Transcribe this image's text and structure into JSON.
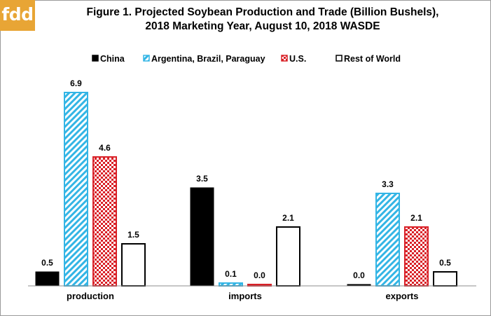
{
  "branding": {
    "logo_text": "fdd",
    "logo_color": "#e8a535"
  },
  "chart_data": {
    "type": "bar",
    "title": "Figure 1. Projected Soybean Production and Trade (Billion Bushels),",
    "subtitle": "2018 Marketing Year, August 10, 2018 WASDE",
    "xlabel": "",
    "ylabel": "",
    "categories": [
      "production",
      "imports",
      "exports"
    ],
    "series": [
      {
        "name": "China",
        "values": [
          0.5,
          3.5,
          0.0
        ],
        "labels": [
          "0.5",
          "3.5",
          "0.0"
        ],
        "color": "#000000",
        "pattern": "solid"
      },
      {
        "name": "Argentina, Brazil, Paraguay",
        "values": [
          6.9,
          0.1,
          3.3
        ],
        "labels": [
          "6.9",
          "0.1",
          "3.3"
        ],
        "color": "#33b5e5",
        "pattern": "diagonal-hatch"
      },
      {
        "name": "U.S.",
        "values": [
          4.6,
          0.0,
          2.1
        ],
        "labels": [
          "4.6",
          "0.0",
          "2.1"
        ],
        "color": "#d92027",
        "pattern": "checkerboard"
      },
      {
        "name": "Rest of World",
        "values": [
          1.5,
          2.1,
          0.5
        ],
        "labels": [
          "1.5",
          "2.1",
          "0.5"
        ],
        "color": "#000000",
        "pattern": "outline"
      }
    ],
    "ylim": [
      0,
      7.5
    ],
    "grid": false,
    "legend_position": "top"
  }
}
